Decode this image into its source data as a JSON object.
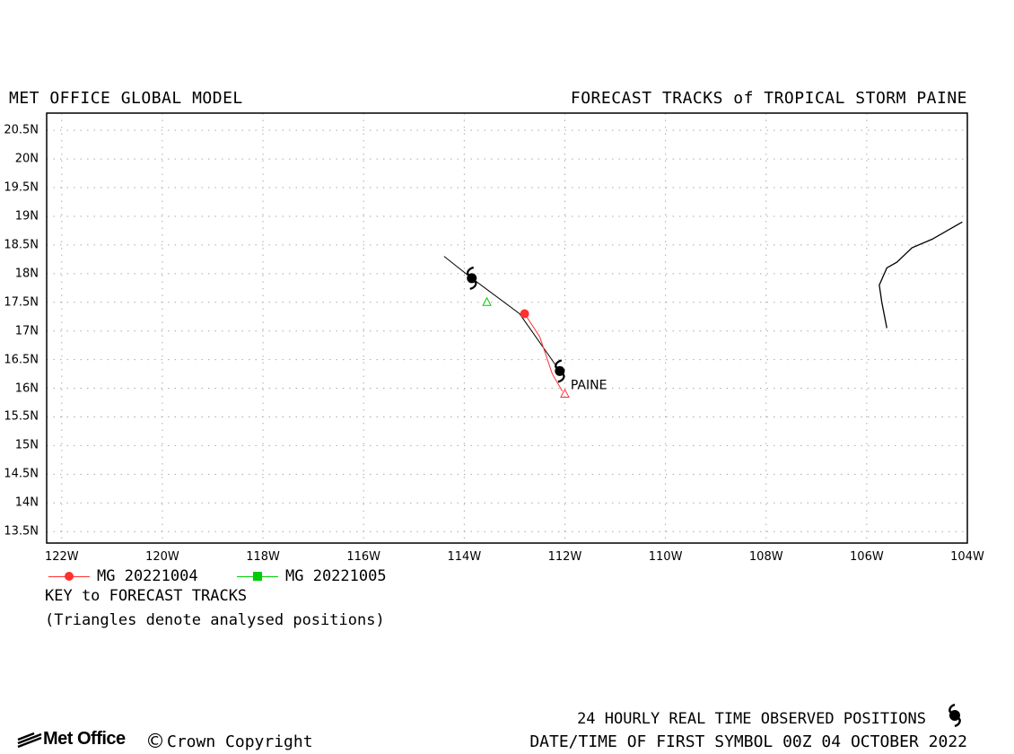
{
  "header": {
    "left_title": "MET OFFICE GLOBAL MODEL",
    "right_title": "FORECAST TRACKS of TROPICAL STORM PAINE"
  },
  "map": {
    "lat_labels": [
      "20.5N",
      "20N",
      "19.5N",
      "19N",
      "18.5N",
      "18N",
      "17.5N",
      "17N",
      "16.5N",
      "16N",
      "15.5N",
      "15N",
      "14.5N",
      "14N",
      "13.5N"
    ],
    "lat_values": [
      20.5,
      20,
      19.5,
      19,
      18.5,
      18,
      17.5,
      17,
      16.5,
      16,
      15.5,
      15,
      14.5,
      14,
      13.5
    ],
    "lon_labels": [
      "122W",
      "120W",
      "118W",
      "116W",
      "114W",
      "112W",
      "110W",
      "108W",
      "106W",
      "104W"
    ],
    "lon_values": [
      -122,
      -120,
      -118,
      -116,
      -114,
      -112,
      -110,
      -108,
      -106,
      -104
    ],
    "lon_range": [
      -122.3,
      -104
    ],
    "lat_range": [
      13.3,
      20.8
    ],
    "storm_label": "PAINE",
    "coastline": [
      [
        -104.1,
        18.9
      ],
      [
        -104.3,
        18.8
      ],
      [
        -104.7,
        18.6
      ],
      [
        -105.1,
        18.45
      ],
      [
        -105.4,
        18.2
      ],
      [
        -105.6,
        18.1
      ],
      [
        -105.75,
        17.8
      ],
      [
        -105.7,
        17.5
      ],
      [
        -105.6,
        17.05
      ]
    ],
    "observed_positions": [
      [
        -112.1,
        16.3
      ],
      [
        -113.85,
        17.92
      ]
    ],
    "observed_track": [
      [
        -114.4,
        18.3
      ],
      [
        -113.85,
        17.92
      ],
      [
        -112.9,
        17.3
      ],
      [
        -112.1,
        16.3
      ]
    ],
    "tracks": [
      {
        "name": "MG 20221004",
        "color": "#ff3030",
        "marker": "circle",
        "points": [
          [
            -112.05,
            15.95
          ],
          [
            -112.25,
            16.25
          ],
          [
            -112.5,
            16.9
          ],
          [
            -112.8,
            17.3
          ]
        ],
        "analysed": [
          -112.0,
          15.9
        ]
      },
      {
        "name": "MG 20221005",
        "color": "#00cc00",
        "marker": "square",
        "points": [],
        "analysed": [
          -113.55,
          17.5
        ]
      }
    ]
  },
  "legend": {
    "items": [
      {
        "label": "MG 20221004",
        "color": "#ff3030",
        "marker": "circle"
      },
      {
        "label": "MG 20221005",
        "color": "#00cc00",
        "marker": "square"
      }
    ],
    "key_title": "KEY to FORECAST TRACKS",
    "note": "(Triangles denote analysed positions)"
  },
  "footer": {
    "observed_text": "24 HOURLY REAL TIME OBSERVED POSITIONS",
    "datetime_text": "DATE/TIME OF FIRST SYMBOL 00Z 04 OCTOBER 2022",
    "logo_text": "Met Office",
    "copyright_symbol": "©",
    "copyright_text": "Crown Copyright"
  }
}
